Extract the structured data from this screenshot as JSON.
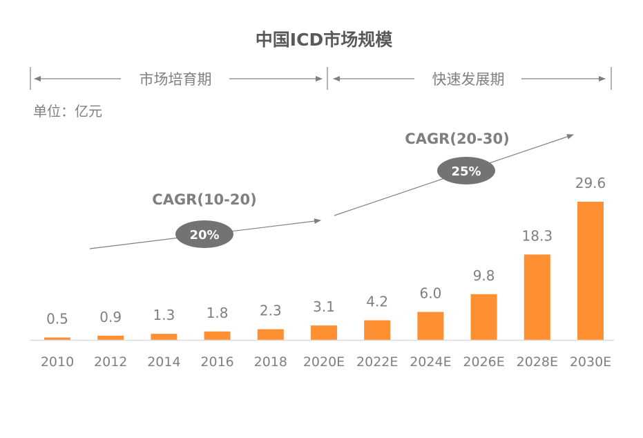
{
  "chart_data": {
    "type": "bar",
    "title": "中国ICD市场规模",
    "unit_label": "单位：亿元",
    "categories": [
      "2010",
      "2012",
      "2014",
      "2016",
      "2018",
      "2020E",
      "2022E",
      "2024E",
      "2026E",
      "2028E",
      "2030E"
    ],
    "values": [
      0.5,
      0.9,
      1.3,
      1.8,
      2.3,
      3.1,
      4.2,
      6.0,
      9.8,
      18.3,
      29.6
    ],
    "value_labels": [
      "0.5",
      "0.9",
      "1.3",
      "1.8",
      "2.3",
      "3.1",
      "4.2",
      "6.0",
      "9.8",
      "18.3",
      "29.6"
    ],
    "ylim": [
      0,
      30
    ],
    "grid": false,
    "phases": [
      {
        "label": "市场培育期",
        "from": "2010",
        "to": "2020E"
      },
      {
        "label": "快速发展期",
        "from": "2020E",
        "to": "2030E"
      }
    ],
    "cagr": [
      {
        "label": "CAGR(10-20)",
        "value": "20%"
      },
      {
        "label": "CAGR(20-30)",
        "value": "25%"
      }
    ],
    "colors": {
      "bar": "#FF8F33",
      "text": "#7F7F7F",
      "title": "#595959",
      "badge": "#737373",
      "badge_text": "#FFFFFF"
    }
  }
}
